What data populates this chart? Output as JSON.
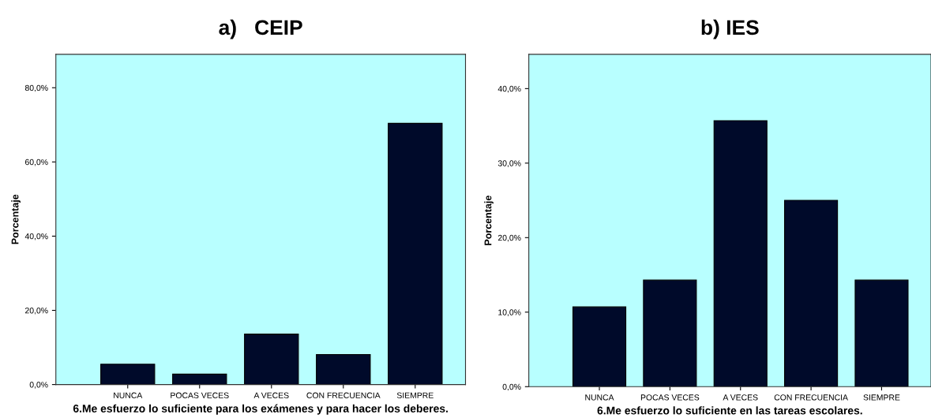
{
  "chart_data": [
    {
      "type": "bar",
      "title": "a)   CEIP",
      "xlabel": "6.Me esfuerzo lo suficiente para los exámenes y para hacer los deberes.",
      "ylabel": "Porcentaje",
      "categories": [
        "NUNCA",
        "POCAS VECES",
        "A VECES",
        "CON FRECUENCIA",
        "SIEMPRE"
      ],
      "values": [
        5.5,
        2.8,
        13.6,
        8.1,
        70.4
      ],
      "color": "#000a2a",
      "ylim": [
        0,
        89
      ],
      "yticks": [
        {
          "value": 0,
          "label": "0,0%"
        },
        {
          "value": 20,
          "label": "20,0%"
        },
        {
          "value": 40,
          "label": "40,0%"
        },
        {
          "value": 60,
          "label": "60,0%"
        },
        {
          "value": 80,
          "label": "80,0%"
        }
      ]
    },
    {
      "type": "bar",
      "title": "b) IES",
      "xlabel": "6.Me esfuerzo lo suficiente en las tareas escolares.",
      "ylabel": "Porcentaje",
      "categories": [
        "NUNCA",
        "POCAS VECES",
        "A VECES",
        "CON FRECUENCIA",
        "SIEMPRE"
      ],
      "values": [
        10.7,
        14.3,
        35.7,
        25.0,
        14.3
      ],
      "color": "#000a2a",
      "ylim": [
        0,
        44.6
      ],
      "yticks": [
        {
          "value": 0,
          "label": "0,0%"
        },
        {
          "value": 10,
          "label": "10,0%"
        },
        {
          "value": 20,
          "label": "20,0%"
        },
        {
          "value": 30,
          "label": "30,0%"
        },
        {
          "value": 40,
          "label": "40,0%"
        }
      ]
    }
  ]
}
